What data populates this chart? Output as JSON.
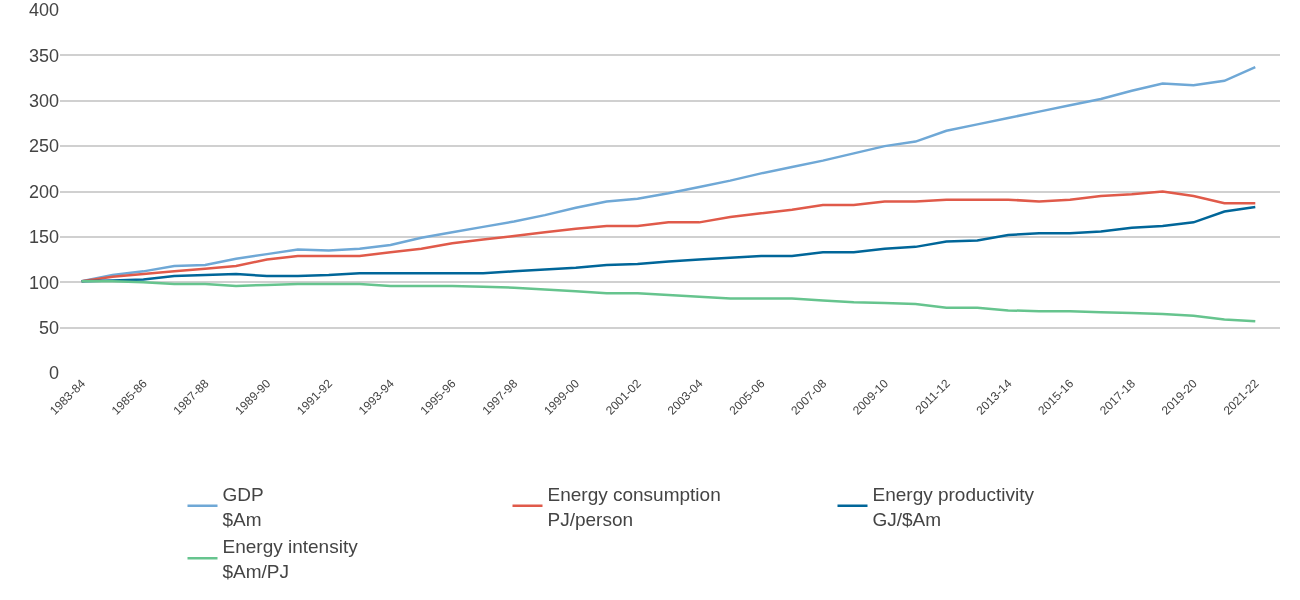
{
  "chart_data": {
    "type": "line",
    "categories": [
      "1983-84",
      null,
      "1985-86",
      null,
      "1987-88",
      null,
      "1989-90",
      null,
      "1991-92",
      null,
      "1993-94",
      null,
      "1995-96",
      null,
      "1997-98",
      null,
      "1999-00",
      null,
      "2001-02",
      null,
      "2003-04",
      null,
      "2005-06",
      null,
      "2007-08",
      null,
      "2009-10",
      null,
      "2011-12",
      null,
      "2013-14",
      null,
      "2015-16",
      null,
      "2017-18",
      null,
      "2019-20",
      null,
      "2021-22"
    ],
    "series": [
      {
        "name": "GDP\n$Am",
        "color": "#6fa8d6",
        "values": [
          101,
          108,
          112,
          118,
          119,
          126,
          131,
          136,
          135,
          137,
          141,
          149,
          155,
          161,
          167,
          174,
          182,
          189,
          192,
          198,
          205,
          212,
          220,
          227,
          234,
          242,
          250,
          255,
          267,
          274,
          281,
          288,
          295,
          302,
          311,
          319,
          317,
          322,
          337
        ]
      },
      {
        "name": "Energy consumption\nPJ/person",
        "color": "#e05a4a",
        "values": [
          101,
          106,
          109,
          112,
          115,
          118,
          125,
          129,
          129,
          129,
          133,
          137,
          143,
          147,
          151,
          155,
          159,
          162,
          162,
          166,
          166,
          172,
          176,
          180,
          185,
          185,
          189,
          189,
          191,
          191,
          191,
          189,
          191,
          195,
          197,
          200,
          195,
          187,
          187
        ]
      },
      {
        "name": "Energy productivity\nGJ/$Am",
        "color": "#006699",
        "values": [
          101,
          102,
          103,
          107,
          108,
          109,
          107,
          107,
          108,
          110,
          110,
          110,
          110,
          110,
          112,
          114,
          116,
          119,
          120,
          123,
          125,
          127,
          129,
          129,
          133,
          133,
          137,
          139,
          145,
          146,
          152,
          154,
          154,
          156,
          160,
          162,
          166,
          178,
          183
        ]
      },
      {
        "name": "Energy intensity\n$Am/PJ",
        "color": "#66c48e",
        "values": [
          101,
          101,
          100,
          98,
          98,
          96,
          97,
          98,
          98,
          98,
          96,
          96,
          96,
          95,
          94,
          92,
          90,
          88,
          88,
          86,
          84,
          82,
          82,
          82,
          80,
          78,
          77,
          76,
          72,
          72,
          69,
          68,
          68,
          67,
          66,
          65,
          63,
          59,
          57
        ]
      }
    ],
    "ylim": [
      0,
      400
    ],
    "yticks": [
      0,
      50,
      100,
      150,
      200,
      250,
      300,
      350,
      400
    ],
    "grid": "y",
    "legend": "bottom",
    "marker": "none",
    "line_style": "solid"
  }
}
